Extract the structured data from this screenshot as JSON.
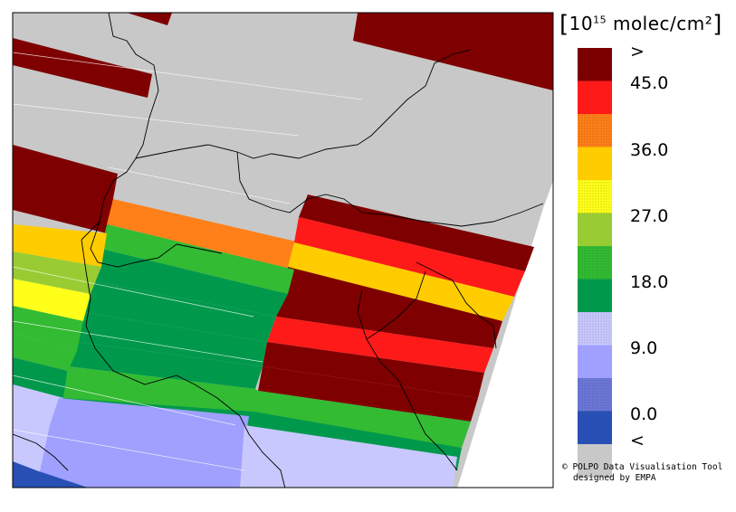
{
  "legend": {
    "title_open": "[",
    "title_base": "10",
    "title_exp": "15",
    "title_unit": " molec/cm²",
    "title_close": "]",
    "labels": [
      ">",
      "45.0",
      "36.0",
      "27.0",
      "18.0",
      "9.0",
      "0.0",
      "<"
    ],
    "colors": [
      {
        "color": "#7f0000",
        "pattern": true
      },
      {
        "color": "#ff1a1a",
        "pattern": false
      },
      {
        "color": "#ff8019",
        "pattern": true
      },
      {
        "color": "#ffcc00",
        "pattern": false
      },
      {
        "color": "#ffff1a",
        "pattern": true
      },
      {
        "color": "#99cc33",
        "pattern": false
      },
      {
        "color": "#33bb33",
        "pattern": true
      },
      {
        "color": "#00994c",
        "pattern": false
      },
      {
        "color": "#c8c8ff",
        "pattern": true
      },
      {
        "color": "#a0a0ff",
        "pattern": false
      },
      {
        "color": "#6c78d8",
        "pattern": true
      },
      {
        "color": "#2850b4",
        "pattern": false
      },
      {
        "color": "#c8c8c8",
        "pattern": false
      }
    ]
  },
  "credit": {
    "line1": "© POLPO Data Visualisation Tool",
    "line2": "designed by EMPA"
  }
}
